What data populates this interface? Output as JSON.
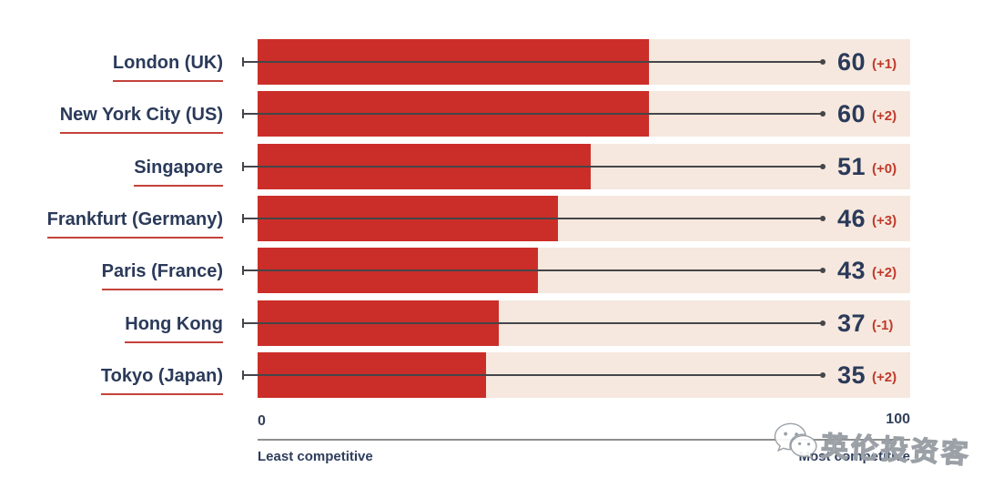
{
  "chart_data": {
    "type": "bar",
    "orientation": "horizontal",
    "categories": [
      "London (UK)",
      "New York City (US)",
      "Singapore",
      "Frankfurt (Germany)",
      "Paris (France)",
      "Hong Kong",
      "Tokyo (Japan)"
    ],
    "values": [
      60,
      60,
      51,
      46,
      43,
      37,
      35
    ],
    "changes": [
      "(+1)",
      "(+2)",
      "(+0)",
      "(+3)",
      "(+2)",
      "(-1)",
      "(+2)"
    ],
    "xlim": [
      0,
      100
    ],
    "grid": "off",
    "legend": "none",
    "axis": {
      "min_tick": "0",
      "max_tick": "100",
      "min_label": "Least competitive",
      "max_label": "Most competitive"
    },
    "colors": {
      "bar": "#cb2e29",
      "track": "#f6e8de",
      "label_text": "#2b3a5a",
      "change_text": "#c0392b",
      "underline": "#c4423a",
      "axis_line": "#8f8f8f",
      "connector": "#44464a"
    }
  },
  "watermark": {
    "text": "英伦投资客",
    "icon": "wechat-icon"
  }
}
